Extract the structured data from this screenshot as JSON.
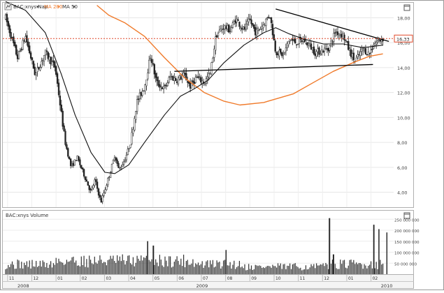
{
  "chart_data": [
    {
      "type": "candlestick",
      "title": "BAC:xnys Nap",
      "legend": [
        {
          "label": "BAC:xnys Nap",
          "color": "#000000"
        },
        {
          "label": "MA 200",
          "color": "#f07a2a"
        },
        {
          "label": "MA 50",
          "color": "#000000"
        }
      ],
      "y_axis": {
        "position": "right",
        "ylim": [
          2.8,
          19.2
        ],
        "ticks": [
          "4,00",
          "6,00",
          "8,00",
          "10,00",
          "12,00",
          "14,00",
          "16,00",
          "18,00"
        ]
      },
      "grid": true,
      "price_marker": {
        "value": 16.33,
        "label": "16,33",
        "style": "dotted",
        "color": "#e0482a"
      },
      "x_axis": {
        "month_ticks": [
          "11",
          "12",
          "01",
          "02",
          "03",
          "04",
          "05",
          "06",
          "07",
          "08",
          "09",
          "10",
          "11",
          "12",
          "01",
          "02"
        ],
        "year_labels": [
          "2008",
          "2009",
          "2010"
        ]
      },
      "price_points": [
        {
          "t": 0.0,
          "price": 18.0
        },
        {
          "t": 0.6,
          "price": 14.8
        },
        {
          "t": 1.0,
          "price": 16.5
        },
        {
          "t": 1.5,
          "price": 13.4
        },
        {
          "t": 2.0,
          "price": 15.2
        },
        {
          "t": 2.5,
          "price": 14.0
        },
        {
          "t": 3.0,
          "price": 8.0
        },
        {
          "t": 3.3,
          "price": 6.0
        },
        {
          "t": 3.6,
          "price": 6.8
        },
        {
          "t": 4.0,
          "price": 5.2
        },
        {
          "t": 4.3,
          "price": 4.0
        },
        {
          "t": 4.5,
          "price": 5.0
        },
        {
          "t": 4.8,
          "price": 3.2
        },
        {
          "t": 5.0,
          "price": 4.2
        },
        {
          "t": 5.3,
          "price": 5.8
        },
        {
          "t": 5.5,
          "price": 7.0
        },
        {
          "t": 5.7,
          "price": 5.8
        },
        {
          "t": 6.0,
          "price": 6.6
        },
        {
          "t": 6.3,
          "price": 8.0
        },
        {
          "t": 6.6,
          "price": 11.2
        },
        {
          "t": 7.0,
          "price": 12.5
        },
        {
          "t": 7.3,
          "price": 15.0
        },
        {
          "t": 7.6,
          "price": 12.8
        },
        {
          "t": 8.0,
          "price": 12.3
        },
        {
          "t": 8.3,
          "price": 13.3
        },
        {
          "t": 8.6,
          "price": 13.0
        },
        {
          "t": 9.0,
          "price": 13.4
        },
        {
          "t": 9.3,
          "price": 12.5
        },
        {
          "t": 9.6,
          "price": 13.2
        },
        {
          "t": 10.0,
          "price": 12.8
        },
        {
          "t": 10.3,
          "price": 13.5
        },
        {
          "t": 10.6,
          "price": 16.6
        },
        {
          "t": 11.0,
          "price": 17.3
        },
        {
          "t": 11.3,
          "price": 17.0
        },
        {
          "t": 11.6,
          "price": 17.9
        },
        {
          "t": 12.0,
          "price": 17.0
        },
        {
          "t": 12.3,
          "price": 17.8
        },
        {
          "t": 12.6,
          "price": 16.8
        },
        {
          "t": 13.0,
          "price": 17.5
        },
        {
          "t": 13.3,
          "price": 18.3
        },
        {
          "t": 13.6,
          "price": 15.3
        },
        {
          "t": 14.0,
          "price": 15.0
        },
        {
          "t": 14.3,
          "price": 16.3
        },
        {
          "t": 14.6,
          "price": 16.0
        },
        {
          "t": 15.0,
          "price": 16.2
        },
        {
          "t": 15.3,
          "price": 15.8
        },
        {
          "t": 15.6,
          "price": 15.2
        },
        {
          "t": 16.0,
          "price": 15.4
        },
        {
          "t": 16.3,
          "price": 15.6
        },
        {
          "t": 16.6,
          "price": 16.9
        },
        {
          "t": 17.0,
          "price": 16.6
        },
        {
          "t": 17.3,
          "price": 15.4
        },
        {
          "t": 17.6,
          "price": 14.5
        },
        {
          "t": 18.0,
          "price": 15.5
        },
        {
          "t": 18.3,
          "price": 15.1
        },
        {
          "t": 18.6,
          "price": 16.0
        },
        {
          "t": 19.0,
          "price": 16.33
        }
      ],
      "ma200_points": [
        {
          "t": 4.6,
          "price": 19.0
        },
        {
          "t": 5.2,
          "price": 18.2
        },
        {
          "t": 6.0,
          "price": 17.6
        },
        {
          "t": 7.0,
          "price": 16.5
        },
        {
          "t": 8.0,
          "price": 14.8
        },
        {
          "t": 9.0,
          "price": 13.2
        },
        {
          "t": 10.0,
          "price": 12.0
        },
        {
          "t": 11.0,
          "price": 11.3
        },
        {
          "t": 11.8,
          "price": 11.0
        },
        {
          "t": 13.0,
          "price": 11.2
        },
        {
          "t": 14.5,
          "price": 11.9
        },
        {
          "t": 15.5,
          "price": 12.8
        },
        {
          "t": 16.5,
          "price": 13.7
        },
        {
          "t": 17.5,
          "price": 14.4
        },
        {
          "t": 18.3,
          "price": 14.9
        },
        {
          "t": 19.0,
          "price": 15.1
        }
      ],
      "ma50_points": [
        {
          "t": 0.0,
          "price": 19.3
        },
        {
          "t": 1.0,
          "price": 18.6
        },
        {
          "t": 2.0,
          "price": 16.8
        },
        {
          "t": 2.8,
          "price": 13.5
        },
        {
          "t": 3.5,
          "price": 10.2
        },
        {
          "t": 4.3,
          "price": 7.2
        },
        {
          "t": 5.0,
          "price": 5.6
        },
        {
          "t": 5.5,
          "price": 5.5
        },
        {
          "t": 6.2,
          "price": 6.2
        },
        {
          "t": 7.0,
          "price": 8.0
        },
        {
          "t": 8.0,
          "price": 10.2
        },
        {
          "t": 8.8,
          "price": 11.7
        },
        {
          "t": 9.5,
          "price": 12.3
        },
        {
          "t": 10.2,
          "price": 13.0
        },
        {
          "t": 11.0,
          "price": 14.4
        },
        {
          "t": 12.0,
          "price": 15.8
        },
        {
          "t": 13.0,
          "price": 16.8
        },
        {
          "t": 13.6,
          "price": 17.2
        },
        {
          "t": 14.3,
          "price": 16.7
        },
        {
          "t": 15.0,
          "price": 16.3
        },
        {
          "t": 16.0,
          "price": 15.9
        },
        {
          "t": 17.0,
          "price": 15.9
        },
        {
          "t": 18.0,
          "price": 15.6
        },
        {
          "t": 19.0,
          "price": 15.8
        }
      ],
      "trendlines": [
        {
          "name": "resistance",
          "points": [
            {
              "t": 13.6,
              "price": 18.7
            },
            {
              "t": 19.3,
              "price": 16.1
            }
          ]
        },
        {
          "name": "support",
          "points": [
            {
              "t": 8.5,
              "price": 13.7
            },
            {
              "t": 18.5,
              "price": 14.25
            }
          ]
        }
      ]
    },
    {
      "type": "bar",
      "title": "BAC:xnys Volume",
      "y_axis": {
        "position": "right",
        "ylim": [
          0,
          270000000
        ],
        "ticks": [
          "50 000 000",
          "100 000 000",
          "150 000 000",
          "200 000 000",
          "250 000 000"
        ]
      },
      "baseline_volume": 50000000,
      "spikes": [
        {
          "t": 7.15,
          "volume": 150000000
        },
        {
          "t": 7.45,
          "volume": 130000000
        },
        {
          "t": 11.1,
          "volume": 110000000
        },
        {
          "t": 16.3,
          "volume": 255000000
        },
        {
          "t": 16.5,
          "volume": 90000000
        },
        {
          "t": 18.55,
          "volume": 225000000
        },
        {
          "t": 18.8,
          "volume": 205000000
        },
        {
          "t": 19.2,
          "volume": 190000000
        }
      ]
    }
  ]
}
